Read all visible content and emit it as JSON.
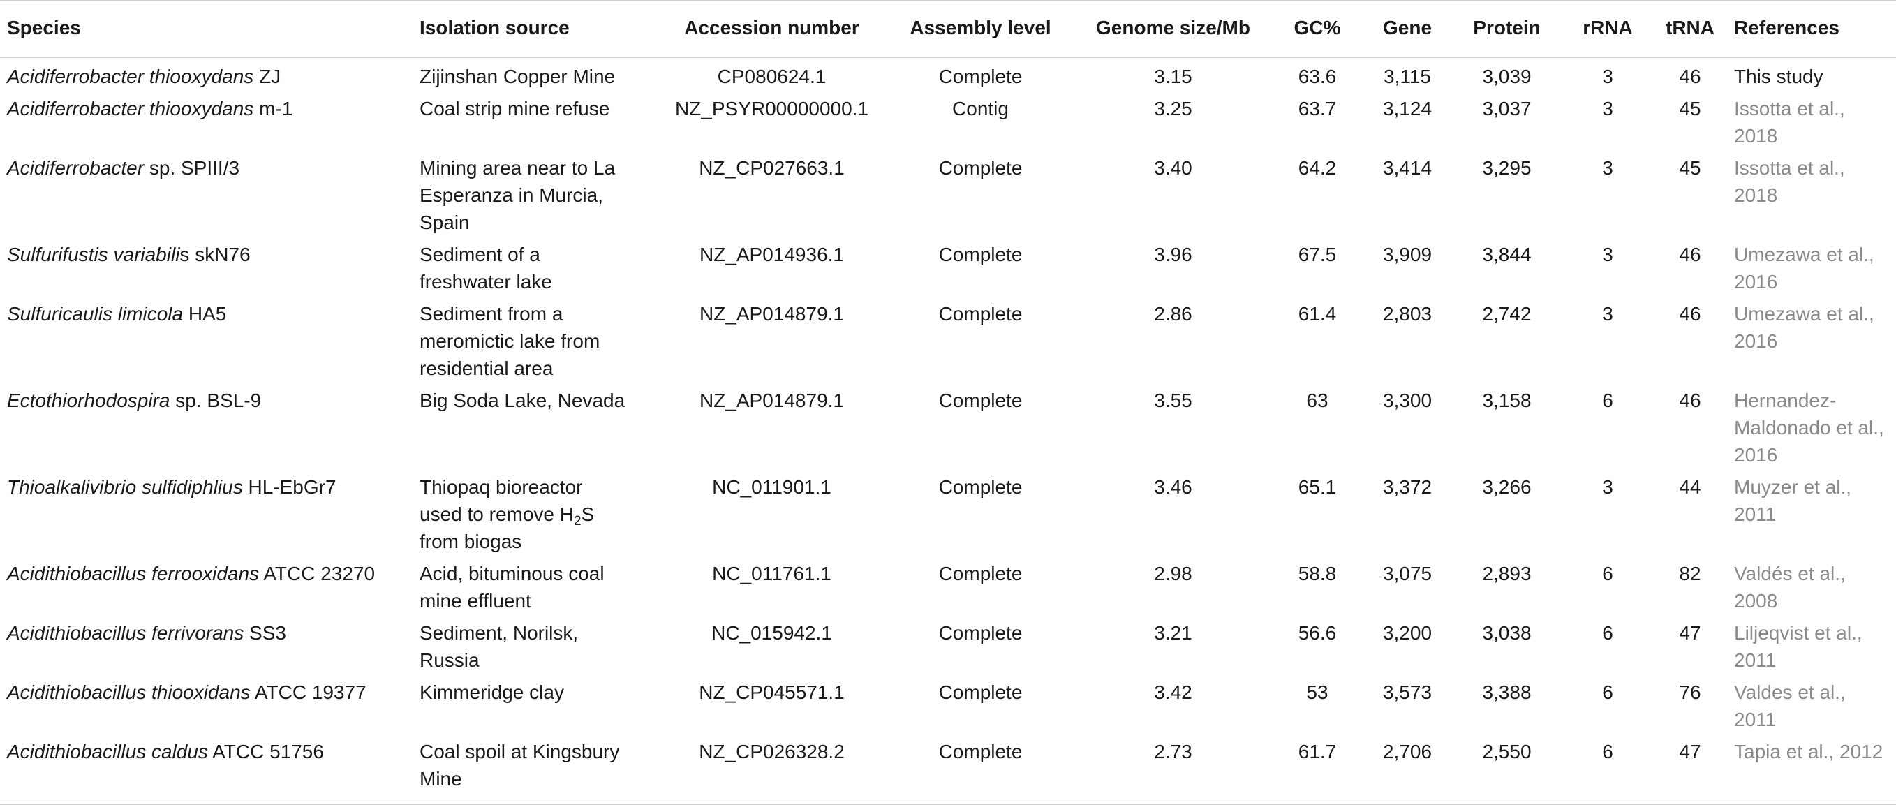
{
  "headers": [
    "Species",
    "Isolation source",
    "Accession number",
    "Assembly level",
    "Genome size/Mb",
    "GC%",
    "Gene",
    "Protein",
    "rRNA",
    "tRNA",
    "References"
  ],
  "rows": [
    {
      "species_italic": "Acidiferrobacter thiooxydans",
      "species_suffix": " ZJ",
      "isolation_html": "Zijinshan Copper Mine",
      "accession": "CP080624.1",
      "assembly": "Complete",
      "genome_size": "3.15",
      "gc": "63.6",
      "gene": "3,115",
      "protein": "3,039",
      "rrna": "3",
      "trna": "46",
      "reference": "This study",
      "reference_own": true
    },
    {
      "species_italic": "Acidiferrobacter thiooxydans",
      "species_suffix": " m-1",
      "isolation_html": "Coal strip mine refuse",
      "accession": "NZ_PSYR00000000.1",
      "assembly": "Contig",
      "genome_size": "3.25",
      "gc": "63.7",
      "gene": "3,124",
      "protein": "3,037",
      "rrna": "3",
      "trna": "45",
      "reference": "Issotta et al., 2018",
      "reference_own": false
    },
    {
      "species_italic": "Acidiferrobacter",
      "species_suffix": " sp. SPIII/3",
      "isolation_html": "Mining area near to La<br>Esperanza in Murcia,<br>Spain",
      "accession": "NZ_CP027663.1",
      "assembly": "Complete",
      "genome_size": "3.40",
      "gc": "64.2",
      "gene": "3,414",
      "protein": "3,295",
      "rrna": "3",
      "trna": "45",
      "reference": "Issotta et al., 2018",
      "reference_own": false
    },
    {
      "species_italic": "Sulfurifustis variabili",
      "species_suffix": "s skN76",
      "isolation_html": "Sediment of a<br>freshwater lake",
      "accession": "NZ_AP014936.1",
      "assembly": "Complete",
      "genome_size": "3.96",
      "gc": "67.5",
      "gene": "3,909",
      "protein": "3,844",
      "rrna": "3",
      "trna": "46",
      "reference": "Umezawa et al.,<br>2016",
      "reference_own": false
    },
    {
      "species_italic": "Sulfuricaulis limicola",
      "species_suffix": " HA5",
      "isolation_html": "Sediment from a<br>meromictic lake from<br>residential area",
      "accession": "NZ_AP014879.1",
      "assembly": "Complete",
      "genome_size": "2.86",
      "gc": "61.4",
      "gene": "2,803",
      "protein": "2,742",
      "rrna": "3",
      "trna": "46",
      "reference": "Umezawa et al.,<br>2016",
      "reference_own": false
    },
    {
      "species_italic": "Ectothiorhodospira",
      "species_suffix": " sp. BSL-9",
      "isolation_html": "Big Soda Lake, Nevada",
      "accession": "NZ_AP014879.1",
      "assembly": "Complete",
      "genome_size": "3.55",
      "gc": "63",
      "gene": "3,300",
      "protein": "3,158",
      "rrna": "6",
      "trna": "46",
      "reference": "Hernandez-<br>Maldonado et al.,<br>2016",
      "reference_own": false
    },
    {
      "species_italic": "Thioalkalivibrio sulfidiphlius",
      "species_suffix": " HL-EbGr7",
      "isolation_html": "Thiopaq bioreactor<br>used to remove H<sub>2</sub>S<br>from biogas",
      "accession": "NC_011901.1",
      "assembly": "Complete",
      "genome_size": "3.46",
      "gc": "65.1",
      "gene": "3,372",
      "protein": "3,266",
      "rrna": "3",
      "trna": "44",
      "reference": "Muyzer et al., 2011",
      "reference_own": false
    },
    {
      "species_italic": "Acidithiobacillus ferrooxidans",
      "species_suffix": " ATCC 23270",
      "isolation_html": "Acid, bituminous coal<br>mine effluent",
      "accession": "NC_011761.1",
      "assembly": "Complete",
      "genome_size": "2.98",
      "gc": "58.8",
      "gene": "3,075",
      "protein": "2,893",
      "rrna": "6",
      "trna": "82",
      "reference": "Valdés et al., 2008",
      "reference_own": false
    },
    {
      "species_italic": "Acidithiobacillus ferrivorans",
      "species_suffix": " SS3",
      "isolation_html": "Sediment, Norilsk,<br>Russia",
      "accession": "NC_015942.1",
      "assembly": "Complete",
      "genome_size": "3.21",
      "gc": "56.6",
      "gene": "3,200",
      "protein": "3,038",
      "rrna": "6",
      "trna": "47",
      "reference": "Liljeqvist et al.,<br>2011",
      "reference_own": false
    },
    {
      "species_italic": "Acidithiobacillus thiooxidans",
      "species_suffix": " ATCC 19377",
      "isolation_html": "Kimmeridge clay",
      "accession": "NZ_CP045571.1",
      "assembly": "Complete",
      "genome_size": "3.42",
      "gc": "53",
      "gene": "3,573",
      "protein": "3,388",
      "rrna": "6",
      "trna": "76",
      "reference": "Valdes et al., 2011",
      "reference_own": false
    },
    {
      "species_italic": "Acidithiobacillus caldus",
      "species_suffix": " ATCC 51756",
      "isolation_html": "Coal spoil at Kingsbury<br>Mine",
      "accession": "NZ_CP026328.2",
      "assembly": "Complete",
      "genome_size": "2.73",
      "gc": "61.7",
      "gene": "2,706",
      "protein": "2,550",
      "rrna": "6",
      "trna": "47",
      "reference": "Tapia et al., 2012",
      "reference_own": false
    }
  ]
}
